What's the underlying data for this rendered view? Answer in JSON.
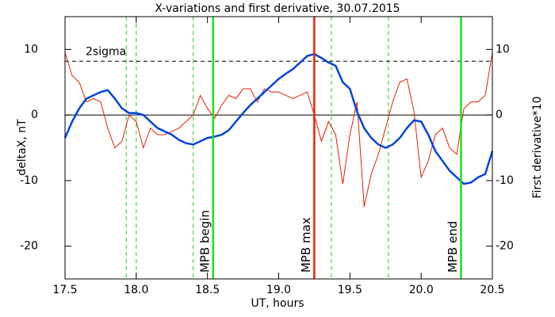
{
  "chart_data": {
    "type": "line",
    "title": "X-variations and first derivative, 30.07.2015",
    "xlabel": "UT, hours",
    "ylabel": "deltaX, nT",
    "y2label": "First derivative*10",
    "ylabel_color": "#0044dd",
    "y2label_color": "#dd2200",
    "x": [
      17.5,
      17.55,
      17.6,
      17.65,
      17.7,
      17.75,
      17.8,
      17.85,
      17.9,
      17.95,
      18.0,
      18.05,
      18.1,
      18.15,
      18.2,
      18.25,
      18.3,
      18.35,
      18.4,
      18.45,
      18.5,
      18.55,
      18.6,
      18.65,
      18.7,
      18.75,
      18.8,
      18.85,
      18.9,
      18.95,
      19.0,
      19.05,
      19.1,
      19.15,
      19.2,
      19.25,
      19.3,
      19.35,
      19.4,
      19.45,
      19.5,
      19.55,
      19.6,
      19.65,
      19.7,
      19.75,
      19.8,
      19.85,
      19.9,
      19.95,
      20.0,
      20.05,
      20.1,
      20.15,
      20.2,
      20.25,
      20.3,
      20.35,
      20.4,
      20.45,
      20.5
    ],
    "series": [
      {
        "name": "deltaX",
        "color": "#0044dd",
        "values": [
          -3.5,
          -1,
          1,
          2.5,
          3,
          3.5,
          3.8,
          2.5,
          1,
          0.3,
          0.3,
          0,
          -1,
          -2,
          -2.5,
          -3,
          -3.8,
          -4.3,
          -4.5,
          -4,
          -3.5,
          -3.3,
          -3,
          -2.3,
          -1,
          0.3,
          1.5,
          2.5,
          3.5,
          4.5,
          5.5,
          6.3,
          7,
          8,
          9,
          9.3,
          8.7,
          8,
          7.5,
          5,
          4,
          0.5,
          -2,
          -3.5,
          -4.5,
          -5,
          -4.5,
          -3.5,
          -2,
          -0.8,
          -1,
          -3,
          -5.5,
          -7,
          -8.5,
          -9.5,
          -10.5,
          -10.3,
          -9.5,
          -9,
          -5.5
        ]
      },
      {
        "name": "First derivative*10",
        "color": "#dd2200",
        "axis": "y2",
        "values": [
          9.5,
          6,
          5,
          2,
          2.5,
          2,
          -2,
          -5,
          -4,
          0,
          -1,
          -5,
          -2,
          -3,
          -3,
          -2.5,
          -2,
          -1,
          0,
          3,
          1,
          -0.5,
          1.5,
          3,
          2.5,
          4,
          4,
          2,
          4,
          3.5,
          3.5,
          3,
          2.5,
          3,
          3.5,
          0,
          -4,
          -1,
          -3,
          -10.5,
          -3,
          2,
          -14,
          -9,
          -6,
          -2,
          2,
          5,
          5.5,
          0.5,
          -9.5,
          -7,
          -3,
          -2,
          -5,
          -6,
          1,
          2,
          2,
          3,
          9.5
        ]
      }
    ],
    "xlim": [
      17.5,
      20.5
    ],
    "xticks": [
      17.5,
      {
        "value": 18,
        "label": "18.0"
      },
      18.5,
      {
        "value": 19,
        "label": "19.0"
      },
      19.5,
      {
        "value": 20,
        "label": "20.0"
      },
      20.5
    ],
    "ylim": [
      -25,
      15
    ],
    "yticks": [
      -20,
      -10,
      0,
      10
    ],
    "y2lim": [
      -25,
      15
    ],
    "y2ticks": [
      -20,
      -10,
      0,
      10
    ],
    "threshold": {
      "value": 8.2,
      "label": "2sigma"
    },
    "dashed_lines": [
      {
        "x": 17.93,
        "color": "#22cc22"
      },
      {
        "x": 18.0,
        "color": "#22cc22"
      },
      {
        "x": 18.4,
        "color": "#22cc22"
      },
      {
        "x": 19.37,
        "color": "#22cc22"
      },
      {
        "x": 19.77,
        "color": "#22cc22"
      }
    ],
    "annotations": [
      {
        "x": 18.54,
        "label": "MPB begin",
        "color": "#22dd22"
      },
      {
        "x": 19.25,
        "label": "MPB max",
        "color": "#ee2200"
      },
      {
        "x": 20.28,
        "label": "MPB end",
        "color": "#22dd22"
      }
    ]
  }
}
